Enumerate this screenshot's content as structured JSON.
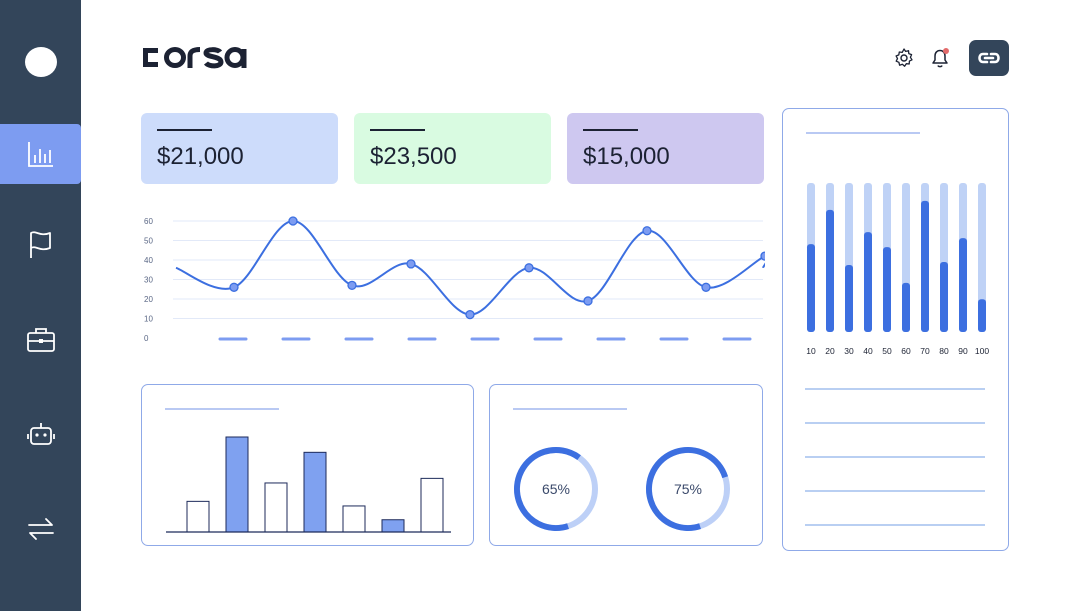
{
  "app": {
    "brand": "corsa"
  },
  "sidebar": {
    "items": [
      {
        "icon": "bar-chart-icon",
        "active": true
      },
      {
        "icon": "flag-icon",
        "active": false
      },
      {
        "icon": "briefcase-icon",
        "active": false
      },
      {
        "icon": "robot-icon",
        "active": false
      },
      {
        "icon": "transfer-arrows-icon",
        "active": false
      }
    ]
  },
  "header": {
    "icons": [
      "gear-icon",
      "bell-icon",
      "link-icon"
    ]
  },
  "kpis": [
    {
      "value": "$21,000",
      "color": "#cddcfb"
    },
    {
      "value": "$23,500",
      "color": "#d9fbe1"
    },
    {
      "value": "$15,000",
      "color": "#cec8f0"
    }
  ],
  "line_chart": {
    "y_ticks": [
      "60",
      "50",
      "40",
      "30",
      "20",
      "10",
      "0"
    ]
  },
  "donuts": [
    {
      "label": "65%",
      "value": 65
    },
    {
      "label": "75%",
      "value": 75
    }
  ],
  "colors": {
    "accent": "#3c6fe0",
    "accent_light": "#bcd0f6",
    "sidebar": "#33455a",
    "active": "#7d9cf1"
  },
  "chart_data": [
    {
      "type": "line",
      "x": [
        1,
        2,
        3,
        4,
        5,
        6,
        7,
        8,
        9,
        10
      ],
      "y": [
        26,
        60,
        27,
        38,
        12,
        36,
        19,
        55,
        26,
        42
      ],
      "ylim": [
        0,
        60
      ],
      "y_ticks": [
        0,
        10,
        20,
        30,
        40,
        50,
        60
      ]
    },
    {
      "type": "bar",
      "values": [
        20,
        62,
        32,
        52,
        17,
        8,
        35
      ],
      "highlighted": [
        false,
        true,
        false,
        true,
        false,
        true,
        false
      ]
    },
    {
      "type": "bar",
      "categories": [
        "10",
        "20",
        "30",
        "40",
        "50",
        "60",
        "70",
        "80",
        "90",
        "100"
      ],
      "series": [
        {
          "values": [
            59,
            82,
            45,
            67,
            57,
            33,
            88,
            47,
            63,
            22
          ]
        },
        {
          "values": [
            100,
            100,
            100,
            100,
            100,
            100,
            100,
            100,
            100,
            100
          ]
        }
      ],
      "ylim": [
        0,
        100
      ]
    }
  ]
}
